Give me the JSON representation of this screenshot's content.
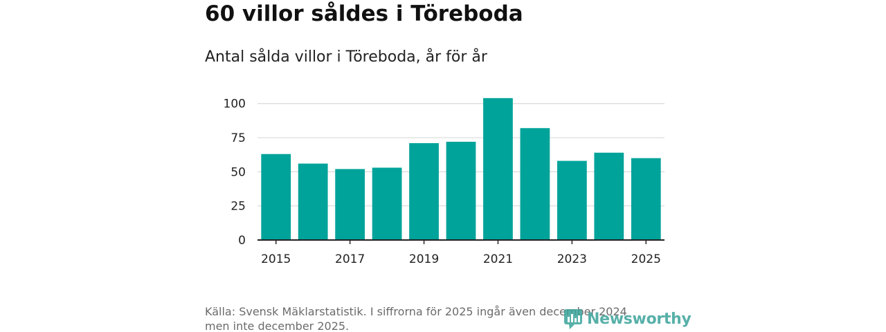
{
  "header": {
    "title": "60 villor såldes i Töreboda",
    "subtitle": "Antal sålda villor i Töreboda, år för år"
  },
  "footer": {
    "source_line1": "Källa: Svensk Mäklarstatistik. I siffrorna för 2025 ingår även december 2024",
    "source_line2": "men inte december 2025.",
    "brand": "Newsworthy"
  },
  "colors": {
    "bar": "#00a39a",
    "grid": "#d9d9d9",
    "axis": "#222222",
    "brand": "#3aa39a"
  },
  "chart_data": {
    "type": "bar",
    "title": "Antal sålda villor i Töreboda, år för år",
    "xlabel": "",
    "ylabel": "",
    "categories": [
      "2015",
      "2016",
      "2017",
      "2018",
      "2019",
      "2020",
      "2021",
      "2022",
      "2023",
      "2024",
      "2025"
    ],
    "values": [
      63,
      56,
      52,
      53,
      71,
      72,
      104,
      82,
      58,
      64,
      60
    ],
    "x_tick_labels": [
      "2015",
      "2017",
      "2019",
      "2021",
      "2023",
      "2025"
    ],
    "y_ticks": [
      0,
      25,
      50,
      75,
      100
    ],
    "ylim": [
      0,
      110
    ],
    "grid": true,
    "legend": "none"
  }
}
